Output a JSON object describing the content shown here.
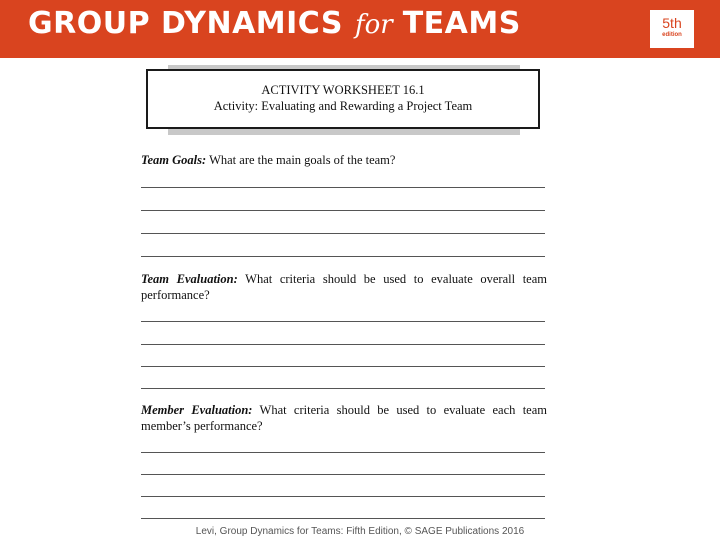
{
  "header": {
    "title_part1": "GROUP DYNAMICS",
    "title_for": "for",
    "title_part2": "TEAMS",
    "edition_number": "5th",
    "edition_word": "edition",
    "banner_color": "#d9441f"
  },
  "worksheet": {
    "heading": "ACTIVITY WORKSHEET 16.1",
    "subtitle": "Activity: Evaluating and Rewarding a Project Team"
  },
  "questions": [
    {
      "label": "Team Goals:",
      "text": "What are the main goals of the team?"
    },
    {
      "label": "Team Evaluation:",
      "text": "What criteria should be used to evaluate overall team performance?"
    },
    {
      "label": "Member Evaluation:",
      "text": "What criteria should be used to evaluate each team member’s performance?"
    }
  ],
  "footer": {
    "citation": "Levi, Group Dynamics for Teams: Fifth Edition, © SAGE Publications 2016"
  }
}
